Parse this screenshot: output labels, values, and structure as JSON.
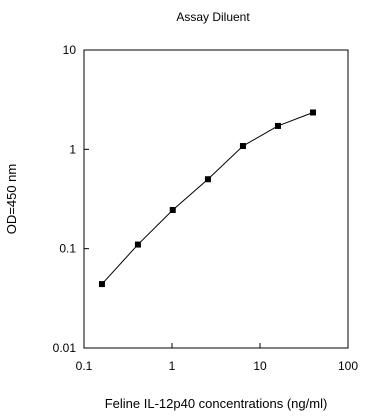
{
  "chart_data": {
    "type": "line",
    "title": "Assay Diluent",
    "xlabel": "Feline IL-12p40 concentrations (ng/ml)",
    "ylabel": "OD=450 nm",
    "xscale": "log",
    "yscale": "log",
    "xlim": [
      0.1,
      100
    ],
    "ylim": [
      0.01,
      10
    ],
    "x_ticks": [
      0.1,
      1,
      10,
      100
    ],
    "x_tick_labels": [
      "0.1",
      "1",
      "10",
      "100"
    ],
    "y_ticks": [
      0.01,
      0.1,
      1,
      10
    ],
    "y_tick_labels": [
      "0.01",
      "0.1",
      "1",
      "10"
    ],
    "grid": false,
    "legend": "none",
    "series": [
      {
        "marker": "square",
        "color": "#000000",
        "x": [
          0.16,
          0.41,
          1.02,
          2.56,
          6.4,
          16,
          40
        ],
        "y": [
          0.044,
          0.11,
          0.245,
          0.5,
          1.08,
          1.72,
          2.35
        ]
      }
    ]
  }
}
